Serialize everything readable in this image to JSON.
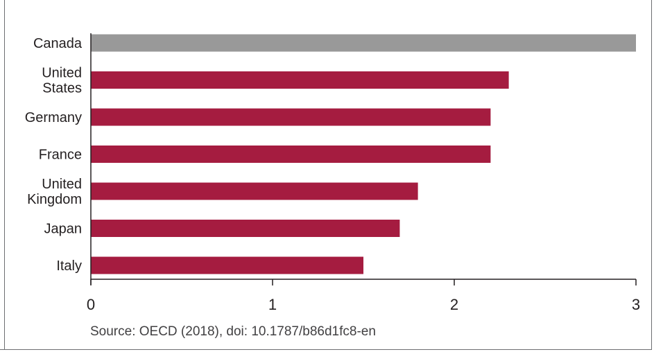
{
  "chart_data": {
    "type": "bar",
    "orientation": "horizontal",
    "categories": [
      "Canada",
      "United States",
      "Germany",
      "France",
      "United Kingdom",
      "Japan",
      "Italy"
    ],
    "category_label_lines": [
      [
        "Canada"
      ],
      [
        "United",
        "States"
      ],
      [
        "Germany"
      ],
      [
        "France"
      ],
      [
        "United",
        "Kingdom"
      ],
      [
        "Japan"
      ],
      [
        "Italy"
      ]
    ],
    "values": [
      3.0,
      2.3,
      2.2,
      2.2,
      1.8,
      1.7,
      1.5
    ],
    "bar_colors": [
      "#999999",
      "#a51c40",
      "#a51c40",
      "#a51c40",
      "#a51c40",
      "#a51c40",
      "#a51c40"
    ],
    "xlim": [
      0,
      3
    ],
    "xticks": [
      "0",
      "1",
      "2",
      "3"
    ],
    "title": "",
    "xlabel": "",
    "ylabel": "",
    "grid": false,
    "source": "Source: OECD (2018), doi: 10.1787/b86d1fc8-en"
  }
}
